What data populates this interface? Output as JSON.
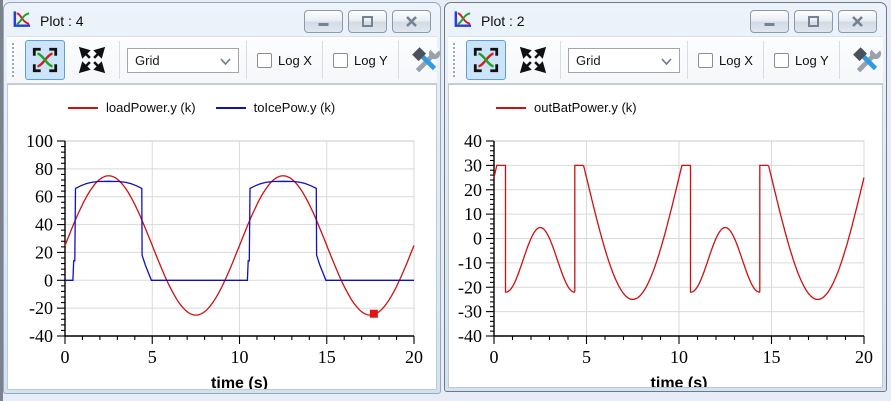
{
  "desktop": {
    "background_color": "#e7edf6",
    "edge_strip_color": "#7c828c"
  },
  "windows": [
    {
      "title": "Plot : 4",
      "toolbar": {
        "grid_dropdown_value": "Grid",
        "log_x_label": "Log X",
        "log_y_label": "Log Y",
        "overflow_label": "»",
        "icons": [
          "fit-in-view-icon",
          "expand-icon",
          "tools-icon"
        ]
      },
      "chart_index": 0
    },
    {
      "title": "Plot : 2",
      "toolbar": {
        "grid_dropdown_value": "Grid",
        "log_x_label": "Log X",
        "log_y_label": "Log Y",
        "overflow_label": "»",
        "icons": [
          "fit-in-view-icon",
          "expand-icon",
          "tools-icon",
          "save-icon"
        ]
      },
      "chart_index": 1
    }
  ],
  "chart_data": [
    {
      "type": "line",
      "title": "",
      "xlabel": "time (s)",
      "ylabel": "",
      "xlim": [
        0,
        20
      ],
      "ylim": [
        -40,
        100
      ],
      "xticks": [
        0,
        5,
        10,
        15,
        20
      ],
      "yticks": [
        -40,
        -20,
        0,
        20,
        40,
        60,
        80,
        100
      ],
      "x_minor_step": 1,
      "y_minor_step": 4,
      "grid": true,
      "legend_position": "top",
      "legend": [
        {
          "label": "loadPower.y (k)",
          "color": "#cc1111"
        },
        {
          "label": "toIcePow.y (k)",
          "color": "#1111bb"
        }
      ],
      "series": [
        {
          "name": "loadPower.y (k)",
          "color": "#cc1111",
          "segments": [
            {
              "sin": {
                "t0": 0,
                "t1": 20,
                "offset": 25,
                "amp": 50,
                "period": 10
              }
            }
          ]
        },
        {
          "name": "toIcePow.y (k)",
          "color": "#1111bb",
          "segments": [
            {
              "line": [
                [
                  0,
                  0
                ],
                [
                  0.45,
                  0
                ],
                [
                  0.5,
                  14
                ],
                [
                  0.56,
                  14
                ],
                [
                  0.6,
                  66
                ],
                [
                  0.9,
                  67.8
                ],
                [
                  1.2,
                  69.3
                ],
                [
                  1.5,
                  70.3
                ],
                [
                  1.9,
                  70.9
                ],
                [
                  2.5,
                  71.1
                ],
                [
                  3.1,
                  70.9
                ],
                [
                  3.5,
                  70.3
                ],
                [
                  3.8,
                  69.3
                ],
                [
                  4.1,
                  67.8
                ],
                [
                  4.4,
                  66
                ],
                [
                  4.42,
                  18
                ],
                [
                  4.6,
                  11
                ],
                [
                  4.95,
                  0
                ],
                [
                  10.45,
                  0
                ],
                [
                  10.5,
                  14
                ],
                [
                  10.56,
                  14
                ],
                [
                  10.6,
                  66
                ],
                [
                  10.9,
                  67.8
                ],
                [
                  11.2,
                  69.3
                ],
                [
                  11.5,
                  70.3
                ],
                [
                  11.9,
                  70.9
                ],
                [
                  12.5,
                  71.1
                ],
                [
                  13.1,
                  70.9
                ],
                [
                  13.5,
                  70.3
                ],
                [
                  13.8,
                  69.3
                ],
                [
                  14.1,
                  67.8
                ],
                [
                  14.4,
                  66
                ],
                [
                  14.42,
                  18
                ],
                [
                  14.6,
                  11
                ],
                [
                  14.95,
                  0
                ],
                [
                  20,
                  0
                ]
              ]
            }
          ]
        }
      ],
      "marker": {
        "t": 17.7,
        "y": -24,
        "color": "#e41414"
      }
    },
    {
      "type": "line",
      "title": "",
      "xlabel": "time (s)",
      "ylabel": "",
      "xlim": [
        0,
        20
      ],
      "ylim": [
        -40,
        40
      ],
      "xticks": [
        0,
        5,
        10,
        15,
        20
      ],
      "yticks": [
        -40,
        -30,
        -20,
        -10,
        0,
        10,
        20,
        30,
        40
      ],
      "x_minor_step": 1,
      "y_minor_step": 2,
      "grid": true,
      "legend_position": "top",
      "legend": [
        {
          "label": "outBatPower.y (k)",
          "color": "#cc1111"
        }
      ],
      "series": [
        {
          "name": "outBatPower.y (k)",
          "color": "#cc1111",
          "segments": [
            {
              "line": [
                [
                  0,
                  25
                ],
                [
                  0.15,
                  30
                ],
                [
                  0.62,
                  30
                ],
                [
                  0.62,
                  -22
                ]
              ]
            },
            {
              "sin": {
                "t0": 0.65,
                "t1": 4.35,
                "offset": -8.75,
                "amp": -13.25,
                "period": 3.7,
                "tref": 0.65,
                "phase_deg": 90
              }
            },
            {
              "line": [
                [
                  4.37,
                  -21.5
                ],
                [
                  4.37,
                  30
                ],
                [
                  4.6,
                  30
                ]
              ]
            },
            {
              "sin": {
                "t0": 4.6,
                "t1": 10.2,
                "offset": 25,
                "amp": 50,
                "period": 10,
                "clipmax": 30
              }
            },
            {
              "line": [
                [
                  10.2,
                  30
                ],
                [
                  10.62,
                  30
                ],
                [
                  10.62,
                  -22
                ]
              ]
            },
            {
              "sin": {
                "t0": 10.65,
                "t1": 14.35,
                "offset": -8.75,
                "amp": -13.25,
                "period": 3.7,
                "tref": 10.65,
                "phase_deg": 90
              }
            },
            {
              "line": [
                [
                  14.37,
                  -21.5
                ],
                [
                  14.37,
                  30
                ],
                [
                  14.6,
                  30
                ]
              ]
            },
            {
              "sin": {
                "t0": 14.6,
                "t1": 20,
                "offset": 25,
                "amp": 50,
                "period": 10,
                "clipmax": 30
              }
            }
          ]
        }
      ]
    }
  ]
}
